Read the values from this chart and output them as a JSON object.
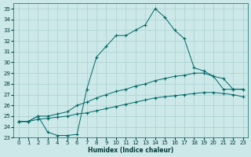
{
  "xlabel": "Humidex (Indice chaleur)",
  "xlim": [
    -0.5,
    23.5
  ],
  "ylim": [
    23,
    35.5
  ],
  "yticks": [
    23,
    24,
    25,
    26,
    27,
    28,
    29,
    30,
    31,
    32,
    33,
    34,
    35
  ],
  "xticks": [
    0,
    1,
    2,
    3,
    4,
    5,
    6,
    7,
    8,
    9,
    10,
    11,
    12,
    13,
    14,
    15,
    16,
    17,
    18,
    19,
    20,
    21,
    22,
    23
  ],
  "background_color": "#cce8e8",
  "grid_color": "#aad0d0",
  "line_color": "#006868",
  "line1_x": [
    0,
    1,
    2,
    3,
    4,
    5,
    6,
    7,
    8,
    9,
    10,
    11,
    12,
    13,
    14,
    15,
    16,
    17,
    18,
    19,
    20,
    21,
    22,
    23
  ],
  "line1_y": [
    24.5,
    24.5,
    25.0,
    23.5,
    23.2,
    23.2,
    23.3,
    27.5,
    30.5,
    31.5,
    32.5,
    32.5,
    33.0,
    33.5,
    35.0,
    34.2,
    33.0,
    32.2,
    29.5,
    29.2,
    28.7,
    27.5,
    27.5,
    27.5
  ],
  "line2_x": [
    0,
    1,
    2,
    3,
    4,
    5,
    6,
    7,
    8,
    9,
    10,
    11,
    12,
    13,
    14,
    15,
    16,
    17,
    18,
    19,
    20,
    21,
    22,
    23
  ],
  "line2_y": [
    24.5,
    24.5,
    25.0,
    25.0,
    25.2,
    25.4,
    26.0,
    26.3,
    26.7,
    27.0,
    27.3,
    27.5,
    27.8,
    28.0,
    28.3,
    28.5,
    28.7,
    28.8,
    29.0,
    29.0,
    28.7,
    28.5,
    27.5,
    27.5
  ],
  "line3_x": [
    0,
    1,
    2,
    3,
    4,
    5,
    6,
    7,
    8,
    9,
    10,
    11,
    12,
    13,
    14,
    15,
    16,
    17,
    18,
    19,
    20,
    21,
    22,
    23
  ],
  "line3_y": [
    24.5,
    24.5,
    24.7,
    24.8,
    24.9,
    25.0,
    25.2,
    25.3,
    25.5,
    25.7,
    25.9,
    26.1,
    26.3,
    26.5,
    26.7,
    26.8,
    26.9,
    27.0,
    27.1,
    27.2,
    27.2,
    27.1,
    27.0,
    26.8
  ]
}
